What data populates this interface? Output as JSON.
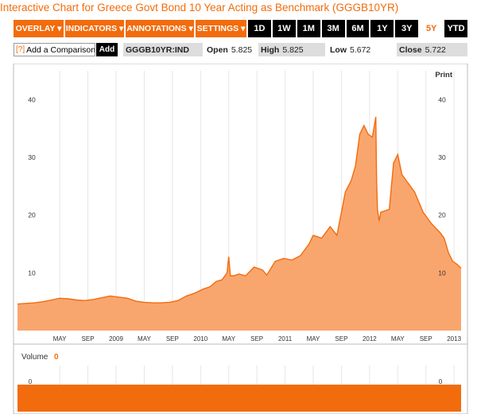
{
  "title": "Interactive Chart for Greece Govt Bond 10 Year Acting as Benchmark (GGGB10YR)",
  "toolbar": {
    "overlay": "OVERLAY ▾",
    "indicators": "INDICATORS ▾",
    "annotations": "ANNOTATIONS ▾",
    "settings": "SETTINGS ▾",
    "ranges": [
      "1D",
      "1W",
      "1M",
      "3M",
      "6M",
      "1Y",
      "3Y",
      "5Y",
      "YTD"
    ],
    "active_range": "5Y"
  },
  "comparison": {
    "help": "[?]",
    "placeholder": "Add a Comparison",
    "add_label": "Add"
  },
  "ticker": "GGGB10YR:IND",
  "stats": {
    "open_label": "Open",
    "open_value": "5.825",
    "high_label": "High",
    "high_value": "5.825",
    "low_label": "Low",
    "low_value": "5.672",
    "close_label": "Close",
    "close_value": "5.722"
  },
  "print_label": "Print",
  "volume_label": "Volume",
  "volume_value": "0",
  "colors": {
    "accent": "#f26c0d",
    "area_fill": "#f9a66e",
    "volume_fill": "#f26c0d"
  },
  "chart_data": {
    "type": "area",
    "title": "",
    "xlabel": "",
    "ylabel": "",
    "y_ticks": [
      10,
      20,
      30,
      40
    ],
    "ylim": [
      0,
      45
    ],
    "x_tick_labels": [
      "MAY",
      "SEP",
      "2009",
      "MAY",
      "SEP",
      "2010",
      "MAY",
      "SEP",
      "2011",
      "MAY",
      "SEP",
      "2012",
      "MAY",
      "SEP",
      "2013"
    ],
    "x_tick_positions": [
      0.5,
      0.8333,
      1.1667,
      1.5,
      1.8333,
      2.1667,
      2.5,
      2.8333,
      3.1667,
      3.5,
      3.8333,
      4.1667,
      4.5,
      4.8333,
      5.1667
    ],
    "series": [
      {
        "x": [
          0,
          0.1,
          0.2,
          0.3,
          0.4,
          0.5,
          0.6,
          0.7,
          0.8,
          0.9,
          1.0,
          1.1,
          1.2,
          1.3,
          1.4,
          1.5,
          1.6,
          1.7,
          1.8,
          1.9,
          2.0,
          2.1,
          2.2,
          2.28,
          2.35,
          2.42,
          2.48,
          2.5,
          2.52,
          2.56,
          2.62,
          2.7,
          2.8,
          2.9,
          2.95,
          3.05,
          3.15,
          3.25,
          3.35,
          3.45,
          3.5,
          3.6,
          3.7,
          3.78,
          3.88,
          3.95,
          4.0,
          4.05,
          4.1,
          4.15,
          4.2,
          4.24,
          4.25,
          4.26,
          4.28,
          4.3,
          4.4,
          4.45,
          4.5,
          4.55,
          4.6,
          4.65,
          4.7,
          4.8,
          4.9,
          5.0,
          5.05,
          5.1,
          5.15,
          5.2,
          5.25
        ],
        "y": [
          4.6,
          4.7,
          4.8,
          5.0,
          5.3,
          5.6,
          5.5,
          5.3,
          5.2,
          5.4,
          5.7,
          6.0,
          5.8,
          5.6,
          5.1,
          4.9,
          4.8,
          4.8,
          4.9,
          5.2,
          6.0,
          6.5,
          7.2,
          7.6,
          8.5,
          8.8,
          10.0,
          12.8,
          9.5,
          9.5,
          9.8,
          9.5,
          11.0,
          10.5,
          9.6,
          12.0,
          12.5,
          12.2,
          13.0,
          15.0,
          16.5,
          16.0,
          18.0,
          16.5,
          24.0,
          26.0,
          28.5,
          34.0,
          35.5,
          34.0,
          33.5,
          37.0,
          26.0,
          21.0,
          19.0,
          20.5,
          21.0,
          29.0,
          30.5,
          27.0,
          26.0,
          25.0,
          24.0,
          20.5,
          18.5,
          17.0,
          16.0,
          13.5,
          12.0,
          11.5,
          10.8
        ]
      }
    ],
    "volume": [
      0
    ],
    "volume_ylim": [
      0,
      1
    ],
    "grid": "x-only",
    "legend": "none"
  }
}
